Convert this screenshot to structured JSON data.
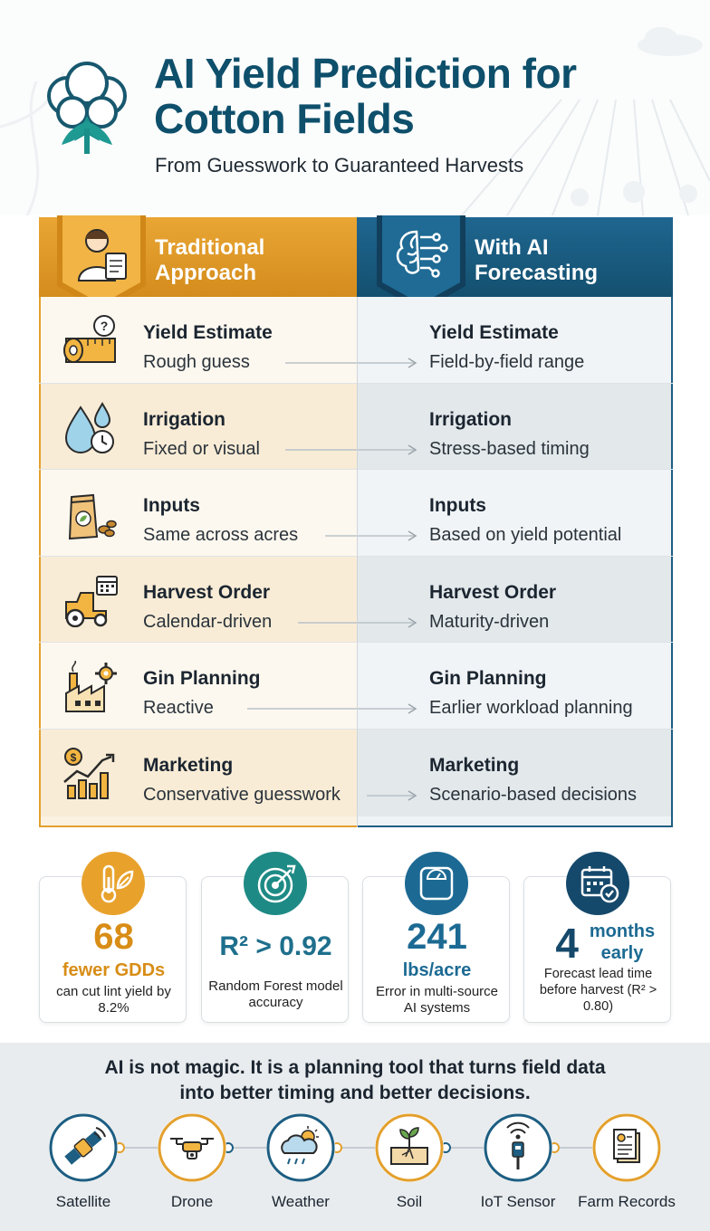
{
  "header": {
    "title": "AI Yield Prediction for Cotton Fields",
    "subtitle": "From Guesswork to Guaranteed Harvests"
  },
  "columns": {
    "traditional": {
      "label": "Traditional Approach",
      "icon": "farmer-clipboard-icon",
      "color": "#e3a02d"
    },
    "ai": {
      "label": "With AI Forecasting",
      "icon": "ai-brain-icon",
      "color": "#1d5e82"
    }
  },
  "rows": [
    {
      "icon": "measuring-tape-question-icon",
      "title": "Yield Estimate",
      "traditional": "Rough guess",
      "ai": "Field-by-field range"
    },
    {
      "icon": "water-drops-clock-icon",
      "title": "Irrigation",
      "traditional": "Fixed or visual",
      "ai": "Stress-based timing"
    },
    {
      "icon": "seed-bag-icon",
      "title": "Inputs",
      "traditional": "Same across acres",
      "ai": "Based on yield potential"
    },
    {
      "icon": "tractor-calendar-icon",
      "title": "Harvest Order",
      "traditional": "Calendar-driven",
      "ai": "Maturity-driven"
    },
    {
      "icon": "factory-gear-icon",
      "title": "Gin Planning",
      "traditional": "Reactive",
      "ai": "Earlier workload planning"
    },
    {
      "icon": "rising-chart-dollar-icon",
      "title": "Marketing",
      "traditional": "Conservative guesswork",
      "ai": "Scenario-based decisions"
    }
  ],
  "stats": [
    {
      "icon": "thermometer-leaf-icon",
      "value": "68",
      "unit": "fewer GDDs",
      "desc": "can cut lint yield by 8.2%"
    },
    {
      "icon": "target-icon",
      "value": "R² > 0.92",
      "unit": "",
      "desc": "Random Forest model accuracy"
    },
    {
      "icon": "scale-icon",
      "value": "241",
      "unit": "lbs/acre",
      "desc": "Error in multi-source AI systems"
    },
    {
      "icon": "calendar-check-icon",
      "value": "4",
      "unit": "months early",
      "desc": "Forecast lead time before harvest (R² > 0.80)"
    }
  ],
  "footer": {
    "message": "AI is not magic. It is a planning tool that turns field data into better timing and better decisions.",
    "sources": [
      {
        "icon": "satellite-icon",
        "label": "Satellite"
      },
      {
        "icon": "drone-icon",
        "label": "Drone"
      },
      {
        "icon": "weather-cloud-icon",
        "label": "Weather"
      },
      {
        "icon": "soil-sprout-icon",
        "label": "Soil"
      },
      {
        "icon": "iot-sensor-icon",
        "label": "IoT Sensor"
      },
      {
        "icon": "farm-records-icon",
        "label": "Farm Records"
      }
    ]
  }
}
